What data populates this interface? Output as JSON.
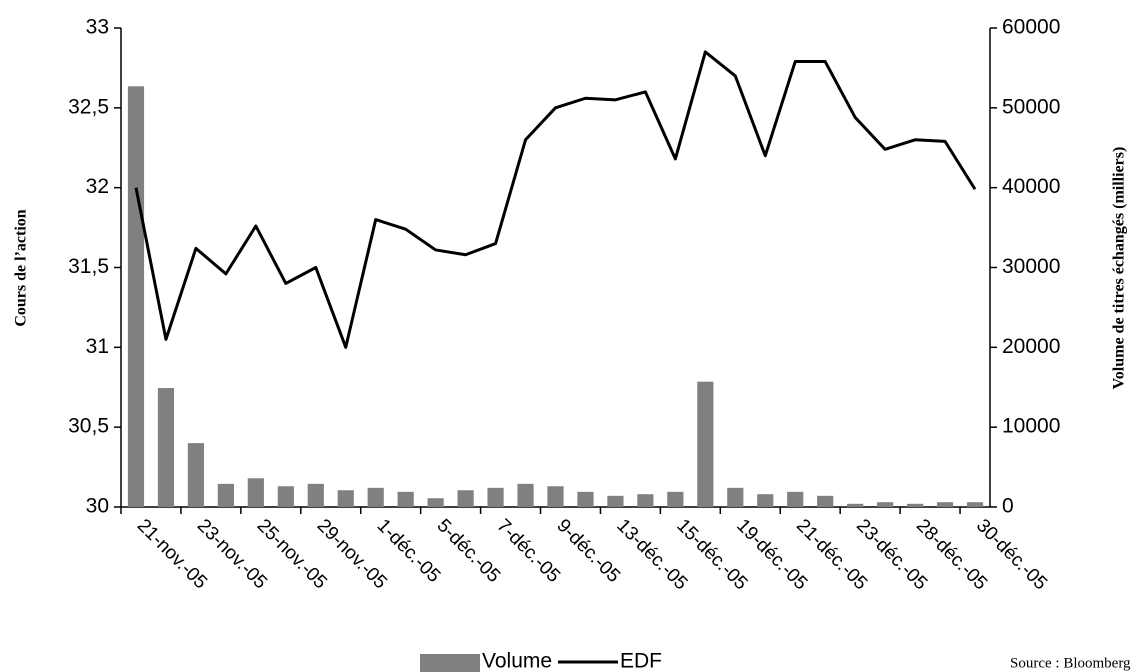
{
  "chart_data": {
    "type": "bar-line",
    "y_label": "Cours de l’action",
    "y2_label": "Volume de titres échangés (milliers)",
    "source": "Source : Bloomberg",
    "categories": [
      "21-nov.-05",
      null,
      "23-nov.-05",
      null,
      "25-nov.-05",
      null,
      "29-nov.-05",
      null,
      "1-déc.-05",
      null,
      "5-déc.-05",
      null,
      "7-déc.-05",
      null,
      "9-déc.-05",
      null,
      "13-déc.-05",
      null,
      "15-déc.-05",
      null,
      "19-déc.-05",
      null,
      "21-déc.-05",
      null,
      "23-déc.-05",
      null,
      "28-déc.-05",
      null,
      "30-déc.-05"
    ],
    "series": [
      {
        "name": "Volume",
        "type": "bar",
        "axis": "y2",
        "color": "#808080",
        "values": [
          52700,
          14900,
          8000,
          2900,
          3600,
          2600,
          2900,
          2100,
          2400,
          1900,
          1100,
          2100,
          2400,
          2900,
          2600,
          1900,
          1400,
          1600,
          1900,
          15700,
          2400,
          1600,
          1900,
          1400,
          400,
          600,
          400,
          600,
          600
        ]
      },
      {
        "name": "EDF",
        "type": "line",
        "axis": "y",
        "color": "#000000",
        "values": [
          32.0,
          31.05,
          31.62,
          31.46,
          31.76,
          31.4,
          31.5,
          31.0,
          31.8,
          31.74,
          31.61,
          31.58,
          31.65,
          32.3,
          32.5,
          32.56,
          32.55,
          32.6,
          32.18,
          32.85,
          32.7,
          32.2,
          32.79,
          32.79,
          32.44,
          32.24,
          32.3,
          32.29,
          31.99
        ]
      }
    ],
    "ylim": [
      30,
      33
    ],
    "yticks": [
      30,
      {
        "value": 30.5,
        "label": "30,5"
      },
      31,
      {
        "value": 31.5,
        "label": "31,5"
      },
      32,
      {
        "value": 32.5,
        "label": "32,5"
      },
      33
    ],
    "y2lim": [
      0,
      60000
    ],
    "y2ticks": [
      0,
      10000,
      20000,
      30000,
      40000,
      50000,
      60000
    ]
  }
}
